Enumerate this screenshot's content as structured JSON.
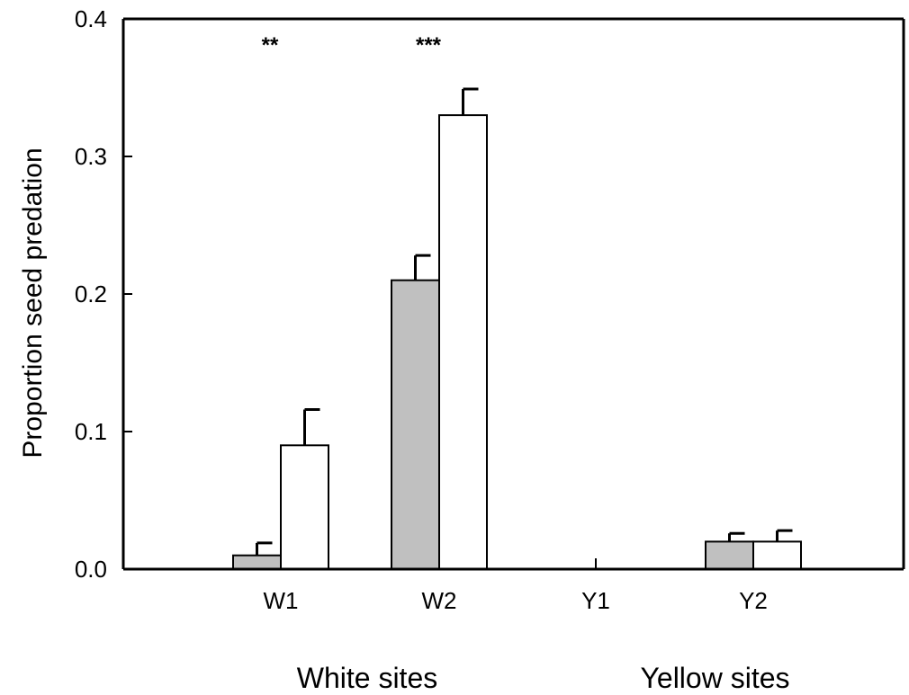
{
  "chart_data": {
    "type": "bar",
    "title": "",
    "xlabel": "",
    "ylabel": "Proportion seed predation",
    "ylim": [
      0,
      0.4
    ],
    "yticks": [
      "0.0",
      "0.1",
      "0.2",
      "0.3",
      "0.4"
    ],
    "categories": [
      "W1",
      "W2",
      "Y1",
      "Y2"
    ],
    "groups": [
      {
        "label": "White sites",
        "categories": [
          "W1",
          "W2"
        ]
      },
      {
        "label": "Yellow sites",
        "categories": [
          "Y1",
          "Y2"
        ]
      }
    ],
    "series": [
      {
        "fill": "#c0c0c0",
        "values": [
          0.01,
          0.21,
          0.0,
          0.02
        ],
        "errors": [
          0.009,
          0.018,
          0.0,
          0.006
        ]
      },
      {
        "fill": "#ffffff",
        "values": [
          0.09,
          0.33,
          0.0,
          0.02
        ],
        "errors": [
          0.026,
          0.019,
          0.0,
          0.008
        ]
      }
    ],
    "annotations": [
      {
        "category": "W1",
        "text": "**"
      },
      {
        "category": "W2",
        "text": "***"
      }
    ],
    "grid": false,
    "legend": "none"
  }
}
